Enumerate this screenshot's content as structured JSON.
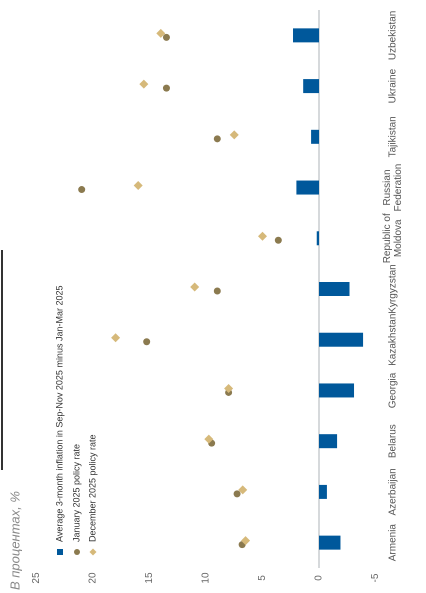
{
  "chart_data": {
    "type": "bar",
    "orientation": "horizontal-rotated",
    "unit_label": "В процентах, %",
    "categories": [
      "Armenia",
      "Azerbaijan",
      "Belarus",
      "Georgia",
      "Kazakhstan",
      "Kyrgyzstan",
      [
        "Republic of",
        "Moldova"
      ],
      [
        "Russian",
        "Federation"
      ],
      "Tajikistan",
      "Ukraine",
      "Uzbekistan"
    ],
    "series": [
      {
        "name": "Average 3-month inflation in Sep-Nov 2025 minus Jan-Mar 2025",
        "kind": "bar",
        "color": "#00589b",
        "values": [
          -1.9,
          -0.7,
          -1.6,
          -3.1,
          -3.9,
          -2.7,
          0.2,
          2.0,
          0.7,
          1.4,
          2.3
        ]
      },
      {
        "name": "January 2025 policy rate",
        "kind": "circle",
        "color": "#8b7a4f",
        "values": [
          6.8,
          7.25,
          9.5,
          8.0,
          15.25,
          9.0,
          3.6,
          21.0,
          9.0,
          13.5,
          13.5
        ]
      },
      {
        "name": "December 2025 policy rate",
        "kind": "diamond",
        "color": "#d6b97a",
        "values": [
          6.5,
          6.75,
          9.75,
          8.0,
          18.0,
          11.0,
          5.0,
          16.0,
          7.5,
          15.5,
          14.0
        ]
      }
    ],
    "value_axis": {
      "min": -5,
      "max": 25,
      "ticks": [
        25,
        20,
        15,
        10,
        5,
        0,
        -5
      ]
    },
    "legend_position": "left"
  }
}
